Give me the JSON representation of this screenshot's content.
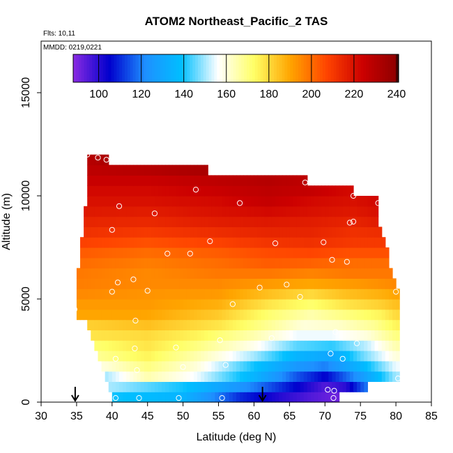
{
  "chart_data": {
    "type": "heatmap",
    "title": "ATOM2 Northeast_Pacific_2 TAS",
    "flights_note": "Flts: 10,11",
    "dates_note": "MMDD: 0219,0221",
    "xlabel": "Latitude (deg N)",
    "ylabel": "Altitude (m)",
    "xlim": [
      30,
      85
    ],
    "ylim": [
      0,
      17500
    ],
    "x_ticks": [
      "30",
      "35",
      "40",
      "45",
      "50",
      "55",
      "60",
      "65",
      "70",
      "75",
      "80",
      "85"
    ],
    "y_ticks": [
      "0",
      "5000",
      "10000",
      "15000"
    ],
    "colorbar": {
      "range": [
        88,
        241
      ],
      "tick_values": [
        100,
        120,
        140,
        160,
        180,
        200,
        220,
        240
      ],
      "tick_labels": [
        "100",
        "120",
        "140",
        "160",
        "180",
        "200",
        "220",
        "240"
      ],
      "colors": [
        "#8a2be2",
        "#0000cd",
        "#1e90ff",
        "#00bfff",
        "#ffffff",
        "#ffff66",
        "#ffa500",
        "#ff4500",
        "#cc0000",
        "#8b0000"
      ]
    },
    "layers": [
      {
        "alt": 250,
        "lat_min": 40,
        "lat_max": 72,
        "values": [
          [
            40,
            140
          ],
          [
            50,
            135
          ],
          [
            58,
            110
          ],
          [
            64,
            100
          ],
          [
            68,
            95
          ],
          [
            71,
            92
          ]
        ]
      },
      {
        "alt": 750,
        "lat_min": 39.5,
        "lat_max": 76,
        "values": [
          [
            40,
            150
          ],
          [
            50,
            140
          ],
          [
            60,
            120
          ],
          [
            66,
            105
          ],
          [
            70,
            95
          ],
          [
            73,
            100
          ],
          [
            76,
            120
          ]
        ]
      },
      {
        "alt": 1250,
        "lat_min": 39,
        "lat_max": 80.5,
        "values": [
          [
            39,
            150
          ],
          [
            45,
            165
          ],
          [
            52,
            155
          ],
          [
            60,
            135
          ],
          [
            66,
            115
          ],
          [
            70,
            105
          ],
          [
            75,
            125
          ],
          [
            80,
            150
          ]
        ]
      },
      {
        "alt": 1750,
        "lat_min": 38.5,
        "lat_max": 80.5,
        "values": [
          [
            39,
            160
          ],
          [
            45,
            170
          ],
          [
            52,
            160
          ],
          [
            60,
            140
          ],
          [
            66,
            125
          ],
          [
            70,
            120
          ],
          [
            75,
            135
          ],
          [
            80,
            155
          ]
        ]
      },
      {
        "alt": 2250,
        "lat_min": 38,
        "lat_max": 80.5,
        "values": [
          [
            38,
            168
          ],
          [
            45,
            175
          ],
          [
            52,
            165
          ],
          [
            60,
            150
          ],
          [
            66,
            135
          ],
          [
            71,
            130
          ],
          [
            75,
            145
          ],
          [
            80,
            160
          ]
        ]
      },
      {
        "alt": 2750,
        "lat_min": 37.5,
        "lat_max": 80.5,
        "values": [
          [
            38,
            172
          ],
          [
            45,
            178
          ],
          [
            52,
            170
          ],
          [
            60,
            158
          ],
          [
            66,
            145
          ],
          [
            71,
            142
          ],
          [
            76,
            152
          ],
          [
            80,
            165
          ]
        ]
      },
      {
        "alt": 3250,
        "lat_min": 37,
        "lat_max": 80.5,
        "values": [
          [
            37,
            178
          ],
          [
            45,
            180
          ],
          [
            52,
            175
          ],
          [
            60,
            165
          ],
          [
            66,
            155
          ],
          [
            71,
            155
          ],
          [
            76,
            160
          ],
          [
            80,
            170
          ]
        ]
      },
      {
        "alt": 3750,
        "lat_min": 36.5,
        "lat_max": 80.5,
        "values": [
          [
            37,
            182
          ],
          [
            45,
            185
          ],
          [
            55,
            178
          ],
          [
            62,
            168
          ],
          [
            67,
            160
          ],
          [
            72,
            162
          ],
          [
            77,
            168
          ],
          [
            80,
            175
          ]
        ]
      },
      {
        "alt": 4250,
        "lat_min": 35,
        "lat_max": 80.5,
        "values": [
          [
            35,
            190
          ],
          [
            45,
            190
          ],
          [
            55,
            183
          ],
          [
            62,
            172
          ],
          [
            68,
            165
          ],
          [
            73,
            170
          ],
          [
            78,
            175
          ],
          [
            80,
            180
          ]
        ]
      },
      {
        "alt": 4750,
        "lat_min": 35,
        "lat_max": 80.5,
        "values": [
          [
            35,
            192
          ],
          [
            45,
            192
          ],
          [
            55,
            188
          ],
          [
            62,
            178
          ],
          [
            68,
            172
          ],
          [
            73,
            178
          ],
          [
            78,
            182
          ],
          [
            80,
            185
          ]
        ]
      },
      {
        "alt": 5250,
        "lat_min": 35,
        "lat_max": 80.5,
        "values": [
          [
            35,
            195
          ],
          [
            45,
            193
          ],
          [
            55,
            192
          ],
          [
            62,
            185
          ],
          [
            68,
            180
          ],
          [
            73,
            185
          ],
          [
            78,
            188
          ],
          [
            80,
            190
          ]
        ]
      },
      {
        "alt": 5750,
        "lat_min": 35,
        "lat_max": 80,
        "values": [
          [
            35,
            197
          ],
          [
            45,
            195
          ],
          [
            55,
            195
          ],
          [
            62,
            192
          ],
          [
            68,
            190
          ],
          [
            74,
            192
          ],
          [
            80,
            195
          ]
        ]
      },
      {
        "alt": 6250,
        "lat_min": 35,
        "lat_max": 79.5,
        "values": [
          [
            35,
            198
          ],
          [
            45,
            195
          ],
          [
            55,
            198
          ],
          [
            62,
            198
          ],
          [
            68,
            196
          ],
          [
            74,
            198
          ],
          [
            79,
            198
          ]
        ]
      },
      {
        "alt": 6750,
        "lat_min": 35.5,
        "lat_max": 79,
        "values": [
          [
            36,
            200
          ],
          [
            45,
            197
          ],
          [
            55,
            200
          ],
          [
            62,
            203
          ],
          [
            68,
            202
          ],
          [
            74,
            200
          ],
          [
            79,
            200
          ]
        ]
      },
      {
        "alt": 7250,
        "lat_min": 35.5,
        "lat_max": 79,
        "values": [
          [
            36,
            203
          ],
          [
            45,
            200
          ],
          [
            55,
            203
          ],
          [
            62,
            206
          ],
          [
            68,
            207
          ],
          [
            74,
            205
          ],
          [
            79,
            205
          ]
        ]
      },
      {
        "alt": 7750,
        "lat_min": 35.5,
        "lat_max": 78.5,
        "values": [
          [
            36,
            208
          ],
          [
            45,
            205
          ],
          [
            55,
            208
          ],
          [
            62,
            211
          ],
          [
            68,
            212
          ],
          [
            74,
            210
          ],
          [
            78,
            210
          ]
        ]
      },
      {
        "alt": 8250,
        "lat_min": 36,
        "lat_max": 78,
        "values": [
          [
            36,
            212
          ],
          [
            45,
            210
          ],
          [
            55,
            213
          ],
          [
            62,
            215
          ],
          [
            68,
            215
          ],
          [
            74,
            212
          ],
          [
            78,
            213
          ]
        ]
      },
      {
        "alt": 8750,
        "lat_min": 36,
        "lat_max": 77.5,
        "values": [
          [
            36,
            215
          ],
          [
            45,
            214
          ],
          [
            55,
            217
          ],
          [
            62,
            218
          ],
          [
            68,
            217
          ],
          [
            74,
            215
          ],
          [
            77,
            217
          ]
        ]
      },
      {
        "alt": 9250,
        "lat_min": 36,
        "lat_max": 77.5,
        "values": [
          [
            36,
            218
          ],
          [
            45,
            217
          ],
          [
            55,
            220
          ],
          [
            62,
            222
          ],
          [
            68,
            220
          ],
          [
            74,
            218
          ],
          [
            77,
            220
          ]
        ]
      },
      {
        "alt": 9750,
        "lat_min": 36.5,
        "lat_max": 77.5,
        "values": [
          [
            37,
            220
          ],
          [
            45,
            220
          ],
          [
            55,
            222
          ],
          [
            62,
            226
          ],
          [
            68,
            222
          ],
          [
            74,
            220
          ],
          [
            77,
            222
          ]
        ]
      },
      {
        "alt": 10250,
        "lat_min": 36.5,
        "lat_max": 74,
        "values": [
          [
            37,
            222
          ],
          [
            45,
            222
          ],
          [
            55,
            225
          ],
          [
            62,
            228
          ],
          [
            68,
            226
          ],
          [
            73,
            222
          ]
        ]
      },
      {
        "alt": 10750,
        "lat_min": 36.5,
        "lat_max": 67.5,
        "values": [
          [
            37,
            225
          ],
          [
            45,
            225
          ],
          [
            55,
            228
          ],
          [
            62,
            230
          ],
          [
            67,
            228
          ]
        ]
      },
      {
        "alt": 11250,
        "lat_min": 36.5,
        "lat_max": 53.5,
        "values": [
          [
            37,
            228
          ],
          [
            45,
            230
          ],
          [
            53,
            233
          ]
        ]
      },
      {
        "alt": 11750,
        "lat_min": 36.5,
        "lat_max": 39.5,
        "values": [
          [
            37,
            230
          ],
          [
            39,
            232
          ]
        ]
      }
    ],
    "points": [
      [
        36.5,
        12000
      ],
      [
        38,
        11850
      ],
      [
        39.2,
        11750
      ],
      [
        51.8,
        10300
      ],
      [
        67.2,
        10650
      ],
      [
        74,
        10000
      ],
      [
        77.5,
        9650
      ],
      [
        41,
        9500
      ],
      [
        46,
        9150
      ],
      [
        58,
        9650
      ],
      [
        73.5,
        8700
      ],
      [
        74,
        8750
      ],
      [
        40,
        8350
      ],
      [
        53.8,
        7800
      ],
      [
        63,
        7700
      ],
      [
        69.8,
        7750
      ],
      [
        47.8,
        7200
      ],
      [
        51,
        7200
      ],
      [
        71,
        6900
      ],
      [
        73.1,
        6800
      ],
      [
        40.8,
        5800
      ],
      [
        43,
        5950
      ],
      [
        64.6,
        5700
      ],
      [
        60.8,
        5550
      ],
      [
        40,
        5350
      ],
      [
        45,
        5400
      ],
      [
        80,
        5350
      ],
      [
        66.5,
        5100
      ],
      [
        57,
        4750
      ],
      [
        34.7,
        4500
      ],
      [
        43.3,
        3950
      ],
      [
        71.5,
        3400
      ],
      [
        62.5,
        3100
      ],
      [
        55.2,
        3000
      ],
      [
        74.5,
        2850
      ],
      [
        49,
        2650
      ],
      [
        43.2,
        2600
      ],
      [
        70.8,
        2350
      ],
      [
        72.5,
        2100
      ],
      [
        40.5,
        2100
      ],
      [
        56,
        1800
      ],
      [
        50,
        1700
      ],
      [
        43.5,
        1550
      ],
      [
        80.3,
        1150
      ],
      [
        70.4,
        600
      ],
      [
        71.3,
        550
      ],
      [
        71.2,
        200
      ],
      [
        40.5,
        200
      ],
      [
        43.8,
        200
      ],
      [
        49.4,
        200
      ],
      [
        55.5,
        200
      ]
    ],
    "arrows_lat": [
      34.8,
      61.2
    ]
  }
}
